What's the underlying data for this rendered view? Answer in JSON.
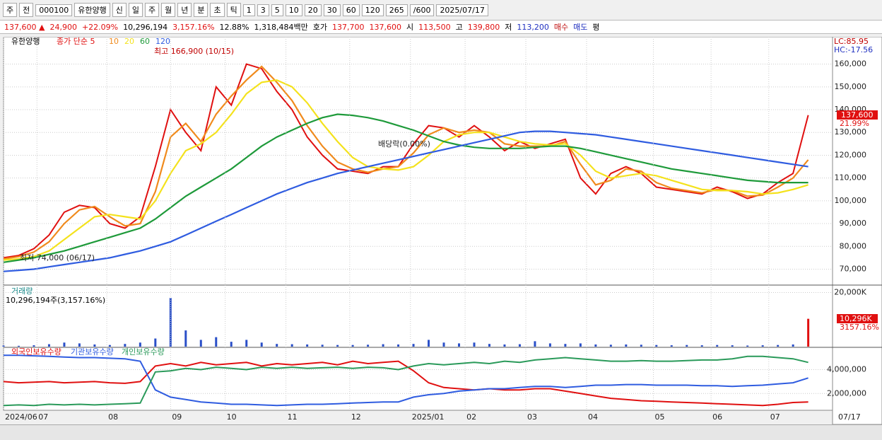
{
  "toolbar": [
    "주",
    "전",
    "000100",
    "유한양행",
    "신",
    "일",
    "주",
    "월",
    "년",
    "분",
    "초",
    "틱",
    "1",
    "3",
    "5",
    "10",
    "20",
    "30",
    "60",
    "120",
    "265",
    "/600",
    "2025/07/17"
  ],
  "quote_bar": [
    "137,600 ▲",
    "24,900",
    "+22.09%",
    "10,296,194",
    "3,157.16%",
    "12.88%",
    "1,318,484백만",
    "호가",
    "137,700",
    "137,600",
    "시",
    "113,500",
    "고",
    "139,800",
    "저",
    "113,200",
    "매수",
    "매도",
    "평"
  ],
  "chart_data": [
    {
      "type": "line",
      "title": "유한양행",
      "xlim": [
        0,
        273
      ],
      "ylim": [
        63000,
        172000
      ],
      "x": [
        0,
        5,
        10,
        15,
        20,
        25,
        30,
        35,
        40,
        45,
        50,
        55,
        60,
        65,
        70,
        75,
        80,
        85,
        90,
        95,
        100,
        105,
        110,
        115,
        120,
        125,
        130,
        135,
        140,
        145,
        150,
        155,
        160,
        165,
        170,
        175,
        180,
        185,
        190,
        195,
        200,
        205,
        210,
        215,
        220,
        225,
        230,
        235,
        240,
        245,
        250,
        255,
        260,
        265
      ],
      "yticks": [
        {
          "value": 70000,
          "label": "70,000"
        },
        {
          "value": 80000,
          "label": "80,000"
        },
        {
          "value": 90000,
          "label": "90,000"
        },
        {
          "value": 100000,
          "label": "100,000"
        },
        {
          "value": 110000,
          "label": "110,000"
        },
        {
          "value": 120000,
          "label": "120,000"
        },
        {
          "value": 130000,
          "label": "130,000"
        },
        {
          "value": 140000,
          "label": "140,000"
        },
        {
          "value": 150000,
          "label": "150,000"
        },
        {
          "value": 160000,
          "label": "160,000"
        }
      ],
      "grid": true,
      "series": [
        {
          "name": "종가 단순 5",
          "color": "#e01010",
          "values": [
            75000,
            76000,
            79000,
            85000,
            95000,
            98000,
            97000,
            90000,
            88000,
            93000,
            115000,
            140000,
            130000,
            122000,
            150000,
            142000,
            160000,
            158000,
            148000,
            140000,
            128000,
            120000,
            114000,
            113000,
            112000,
            115000,
            115000,
            125000,
            133000,
            132000,
            128000,
            133000,
            128000,
            122000,
            126000,
            123000,
            125000,
            127000,
            110000,
            103000,
            112000,
            115000,
            112000,
            106000,
            105000,
            104000,
            103000,
            106000,
            104000,
            101000,
            103000,
            108000,
            112000,
            137600
          ]
        },
        {
          "name": "10",
          "color": "#f08a1c",
          "values": [
            74500,
            75500,
            77500,
            82000,
            90000,
            96000,
            97500,
            93000,
            89000,
            90000,
            104000,
            128000,
            134000,
            126000,
            138000,
            146000,
            153000,
            159000,
            152000,
            144000,
            133000,
            124000,
            117000,
            114000,
            112500,
            114000,
            115000,
            121000,
            129000,
            132000,
            130000,
            131000,
            130000,
            125000,
            124000,
            124000,
            124000,
            126000,
            116000,
            107000,
            109000,
            114000,
            113000,
            108000,
            105500,
            104500,
            103500,
            105000,
            104500,
            102000,
            102500,
            106000,
            110000,
            118000
          ]
        },
        {
          "name": "20",
          "color": "#f4e21c",
          "values": [
            74000,
            74500,
            75500,
            78000,
            83000,
            88000,
            93000,
            94000,
            93000,
            92000,
            100000,
            112000,
            122000,
            125000,
            130000,
            138000,
            147000,
            152000,
            153000,
            150000,
            143000,
            134000,
            126000,
            119000,
            115000,
            114000,
            113500,
            115000,
            120000,
            126000,
            129000,
            130000,
            130000,
            128000,
            126000,
            125000,
            124500,
            125000,
            120000,
            113000,
            110000,
            111000,
            112000,
            111000,
            109000,
            107000,
            105000,
            104500,
            104500,
            104000,
            103000,
            103500,
            105000,
            107000
          ]
        },
        {
          "name": "60",
          "color": "#1e9a3a",
          "values": [
            73000,
            74000,
            75000,
            76500,
            78000,
            80000,
            82000,
            84000,
            86000,
            88000,
            92000,
            97000,
            102000,
            106000,
            110000,
            114000,
            119000,
            124000,
            128000,
            131000,
            134000,
            136500,
            138000,
            137500,
            136500,
            135000,
            133000,
            131000,
            128500,
            126000,
            124500,
            123500,
            123000,
            123000,
            123000,
            123500,
            124000,
            124000,
            123000,
            121500,
            120000,
            118500,
            117000,
            115500,
            114000,
            113000,
            112000,
            111000,
            110000,
            109000,
            108500,
            108000,
            108000,
            108000
          ]
        },
        {
          "name": "120",
          "color": "#2f5ce0",
          "values": [
            69000,
            69500,
            70000,
            71000,
            72000,
            73000,
            74000,
            75000,
            76500,
            78000,
            80000,
            82000,
            85000,
            88000,
            91000,
            94000,
            97000,
            100000,
            103000,
            105500,
            108000,
            110000,
            112000,
            113500,
            115000,
            116500,
            118000,
            119500,
            121000,
            122500,
            124000,
            125500,
            127000,
            128500,
            130000,
            130500,
            130500,
            130000,
            129500,
            129000,
            128000,
            127000,
            126000,
            125000,
            124000,
            123000,
            122000,
            121000,
            120000,
            119000,
            118000,
            117000,
            116000,
            115000
          ]
        }
      ],
      "annotations": [
        "최고 166,900 (10/15)",
        "최저 74,000 (06/17)",
        "배당락(0.00%)",
        "LC:85.95",
        "HC:-17.56",
        "137,600",
        "21.99%"
      ]
    },
    {
      "type": "bar",
      "title": "거래량",
      "subtitle": "10,296,194주(3,157.16%)",
      "xlim": [
        0,
        273
      ],
      "ylim": [
        0,
        22500
      ],
      "x": [
        0,
        5,
        10,
        15,
        20,
        25,
        30,
        35,
        40,
        45,
        50,
        55,
        60,
        65,
        70,
        75,
        80,
        85,
        90,
        95,
        100,
        105,
        110,
        115,
        120,
        125,
        130,
        135,
        140,
        145,
        150,
        155,
        160,
        165,
        170,
        175,
        180,
        185,
        190,
        195,
        200,
        205,
        210,
        215,
        220,
        225,
        230,
        235,
        240,
        245,
        250,
        255,
        260,
        265
      ],
      "yticks": [
        {
          "value": 20000,
          "label": "20,000K"
        }
      ],
      "color": "#2a4fc8",
      "values": [
        400,
        300,
        500,
        900,
        1500,
        1200,
        800,
        600,
        1000,
        1500,
        3000,
        18000,
        6000,
        2500,
        3500,
        1800,
        2500,
        1500,
        1000,
        900,
        800,
        700,
        600,
        600,
        700,
        900,
        800,
        1000,
        2500,
        1500,
        1200,
        1500,
        1000,
        800,
        900,
        2000,
        1200,
        1000,
        1200,
        800,
        700,
        800,
        700,
        600,
        500,
        600,
        500,
        600,
        500,
        400,
        500,
        600,
        800,
        10296
      ],
      "annotations": [
        "10,296K",
        "3157.16%"
      ]
    },
    {
      "type": "line",
      "xlim": [
        0,
        273
      ],
      "ylim": [
        600000,
        5800000
      ],
      "x": [
        0,
        5,
        10,
        15,
        20,
        25,
        30,
        35,
        40,
        45,
        50,
        55,
        60,
        65,
        70,
        75,
        80,
        85,
        90,
        95,
        100,
        105,
        110,
        115,
        120,
        125,
        130,
        135,
        140,
        145,
        150,
        155,
        160,
        165,
        170,
        175,
        180,
        185,
        190,
        195,
        200,
        205,
        210,
        215,
        220,
        225,
        230,
        235,
        240,
        245,
        250,
        255,
        260,
        265
      ],
      "yticks": [
        {
          "value": 2000000,
          "label": "2,000,000"
        },
        {
          "value": 4000000,
          "label": "4,000,000"
        }
      ],
      "xticks": [
        {
          "value": 0,
          "label": "2024/06"
        },
        {
          "value": 11,
          "label": "07"
        },
        {
          "value": 34,
          "label": "08"
        },
        {
          "value": 55,
          "label": "09"
        },
        {
          "value": 73,
          "label": "10"
        },
        {
          "value": 93,
          "label": "11"
        },
        {
          "value": 114,
          "label": "12"
        },
        {
          "value": 134,
          "label": "2025/01"
        },
        {
          "value": 152,
          "label": "02"
        },
        {
          "value": 172,
          "label": "03"
        },
        {
          "value": 192,
          "label": "04"
        },
        {
          "value": 214,
          "label": "05"
        },
        {
          "value": 233,
          "label": "06"
        },
        {
          "value": 252,
          "label": "07"
        }
      ],
      "series": [
        {
          "name": "외국인보유수량",
          "color": "#e01010",
          "values": [
            3000000,
            2900000,
            2950000,
            3000000,
            2900000,
            2950000,
            3000000,
            2900000,
            2850000,
            3000000,
            4300000,
            4500000,
            4300000,
            4600000,
            4400000,
            4500000,
            4600000,
            4300000,
            4500000,
            4400000,
            4500000,
            4600000,
            4400000,
            4700000,
            4500000,
            4600000,
            4700000,
            3900000,
            2900000,
            2500000,
            2400000,
            2300000,
            2400000,
            2300000,
            2300000,
            2400000,
            2400000,
            2200000,
            2000000,
            1800000,
            1600000,
            1500000,
            1400000,
            1350000,
            1300000,
            1250000,
            1200000,
            1150000,
            1100000,
            1050000,
            1000000,
            1100000,
            1250000,
            1300000
          ]
        },
        {
          "name": "기관보유수량",
          "color": "#2f5ce0",
          "values": [
            5200000,
            5200000,
            5150000,
            5100000,
            5050000,
            5000000,
            5000000,
            4950000,
            4900000,
            4700000,
            2300000,
            1700000,
            1500000,
            1300000,
            1200000,
            1100000,
            1100000,
            1050000,
            1000000,
            1050000,
            1100000,
            1100000,
            1150000,
            1200000,
            1250000,
            1300000,
            1300000,
            1700000,
            1900000,
            2000000,
            2200000,
            2300000,
            2400000,
            2400000,
            2500000,
            2600000,
            2600000,
            2500000,
            2600000,
            2700000,
            2700000,
            2750000,
            2750000,
            2700000,
            2700000,
            2700000,
            2650000,
            2650000,
            2600000,
            2650000,
            2700000,
            2800000,
            2900000,
            3300000
          ]
        },
        {
          "name": "개인보유수량",
          "color": "#2a9a5a",
          "values": [
            1000000,
            1050000,
            1000000,
            1100000,
            1050000,
            1100000,
            1050000,
            1100000,
            1150000,
            1200000,
            3800000,
            3900000,
            4100000,
            4000000,
            4200000,
            4100000,
            4000000,
            4200000,
            4100000,
            4200000,
            4100000,
            4150000,
            4200000,
            4100000,
            4200000,
            4150000,
            4000000,
            4300000,
            4500000,
            4400000,
            4500000,
            4600000,
            4500000,
            4700000,
            4600000,
            4800000,
            4900000,
            5000000,
            4900000,
            4800000,
            4700000,
            4700000,
            4750000,
            4700000,
            4700000,
            4750000,
            4800000,
            4800000,
            4900000,
            5100000,
            5100000,
            5000000,
            4900000,
            4600000
          ]
        }
      ],
      "annotations": [
        "07/17"
      ]
    }
  ]
}
